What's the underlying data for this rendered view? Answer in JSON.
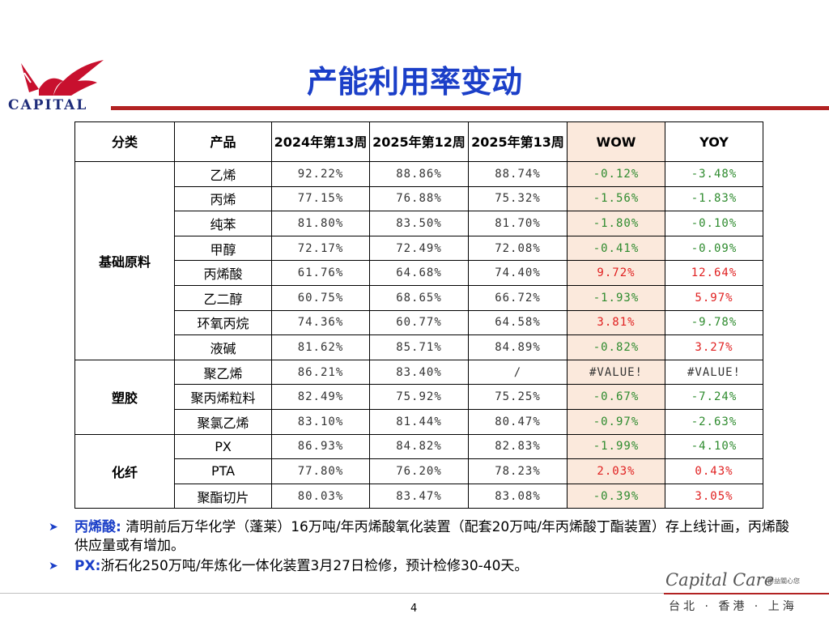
{
  "logo": {
    "text": "CAPITAL"
  },
  "title": "产能利用率变动",
  "table": {
    "headers": [
      "分类",
      "产品",
      "2024年第13周",
      "2025年第12周",
      "2025年第13周",
      "WOW",
      "YOY"
    ],
    "groups": [
      {
        "category": "基础原料",
        "rows": [
          {
            "product": "乙烯",
            "v1": "92.22%",
            "v2": "88.86%",
            "v3": "88.74%",
            "wow": "-0.12%",
            "yoy": "-3.48%"
          },
          {
            "product": "丙烯",
            "v1": "77.15%",
            "v2": "76.88%",
            "v3": "75.32%",
            "wow": "-1.56%",
            "yoy": "-1.83%"
          },
          {
            "product": "纯苯",
            "v1": "81.80%",
            "v2": "83.50%",
            "v3": "81.70%",
            "wow": "-1.80%",
            "yoy": "-0.10%"
          },
          {
            "product": "甲醇",
            "v1": "72.17%",
            "v2": "72.49%",
            "v3": "72.08%",
            "wow": "-0.41%",
            "yoy": "-0.09%"
          },
          {
            "product": "丙烯酸",
            "v1": "61.76%",
            "v2": "64.68%",
            "v3": "74.40%",
            "wow": "9.72%",
            "yoy": "12.64%"
          },
          {
            "product": "乙二醇",
            "v1": "60.75%",
            "v2": "68.65%",
            "v3": "66.72%",
            "wow": "-1.93%",
            "yoy": "5.97%"
          },
          {
            "product": "环氧丙烷",
            "v1": "74.36%",
            "v2": "60.77%",
            "v3": "64.58%",
            "wow": "3.81%",
            "yoy": "-9.78%"
          },
          {
            "product": "液碱",
            "v1": "81.62%",
            "v2": "85.71%",
            "v3": "84.89%",
            "wow": "-0.82%",
            "yoy": "3.27%"
          }
        ]
      },
      {
        "category": "塑胶",
        "rows": [
          {
            "product": "聚乙烯",
            "v1": "86.21%",
            "v2": "83.40%",
            "v3": "/",
            "wow": "#VALUE!",
            "yoy": "#VALUE!"
          },
          {
            "product": "聚丙烯粒料",
            "v1": "82.49%",
            "v2": "75.92%",
            "v3": "75.25%",
            "wow": "-0.67%",
            "yoy": "-7.24%"
          },
          {
            "product": "聚氯乙烯",
            "v1": "83.10%",
            "v2": "81.44%",
            "v3": "80.47%",
            "wow": "-0.97%",
            "yoy": "-2.63%"
          }
        ]
      },
      {
        "category": "化纤",
        "rows": [
          {
            "product": "PX",
            "v1": "86.93%",
            "v2": "84.82%",
            "v3": "82.83%",
            "wow": "-1.99%",
            "yoy": "-4.10%"
          },
          {
            "product": "PTA",
            "v1": "77.80%",
            "v2": "76.20%",
            "v3": "78.23%",
            "wow": "2.03%",
            "yoy": "0.43%"
          },
          {
            "product": "聚酯切片",
            "v1": "80.03%",
            "v2": "83.47%",
            "v3": "83.08%",
            "wow": "-0.39%",
            "yoy": "3.05%"
          }
        ]
      }
    ]
  },
  "notes": [
    {
      "key": "丙烯酸:",
      "text": " 清明前后万华化学（蓬莱）16万吨/年丙烯酸氧化装置（配套20万吨/年丙烯酸丁酯装置）存上线计画，丙烯酸供应量或有增加。"
    },
    {
      "key": "PX:",
      "text": "浙石化250万吨/年炼化一体化装置3月27日检修，预计检修30-40天。"
    }
  ],
  "page_number": "4",
  "footer": {
    "brand": "Capital Care",
    "brand_sub": "群益關心您",
    "cities": "台北 · 香港 · 上海"
  },
  "colors": {
    "title": "#1b3fc8",
    "rule": "#b22222",
    "negative": "#2e8b2e",
    "positive": "#e02020",
    "shade": "#fbe9dc"
  }
}
